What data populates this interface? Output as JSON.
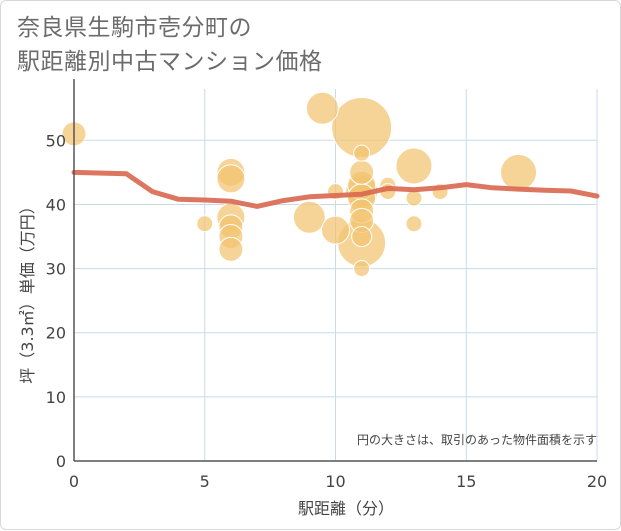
{
  "chart_data": {
    "type": "scatter",
    "title_line1": "奈良県生駒市壱分町の",
    "title_line2": "駅距離別中古マンション価格",
    "xlabel": "駅距離（分）",
    "ylabel": "坪（3.3㎡）単価（万円）",
    "note": "円の大きさは、取引のあった物件面積を示す",
    "xlim": [
      0,
      20
    ],
    "ylim": [
      0,
      58
    ],
    "xticks": [
      "0",
      "5",
      "10",
      "15",
      "20"
    ],
    "yticks": [
      "0",
      "10",
      "20",
      "30",
      "40",
      "50"
    ],
    "points": [
      {
        "x": 0,
        "y": 51,
        "size": 2
      },
      {
        "x": 5,
        "y": 37,
        "size": 1
      },
      {
        "x": 6,
        "y": 45,
        "size": 2.5
      },
      {
        "x": 6,
        "y": 44,
        "size": 2.5
      },
      {
        "x": 6,
        "y": 38,
        "size": 2.5
      },
      {
        "x": 6,
        "y": 36.5,
        "size": 2
      },
      {
        "x": 6,
        "y": 35,
        "size": 2
      },
      {
        "x": 6,
        "y": 33,
        "size": 2
      },
      {
        "x": 9,
        "y": 38,
        "size": 3
      },
      {
        "x": 9.5,
        "y": 55,
        "size": 3
      },
      {
        "x": 10,
        "y": 42,
        "size": 1
      },
      {
        "x": 10,
        "y": 36,
        "size": 2.5
      },
      {
        "x": 11,
        "y": 52,
        "size": 6.5
      },
      {
        "x": 11,
        "y": 48,
        "size": 1
      },
      {
        "x": 11,
        "y": 45,
        "size": 2
      },
      {
        "x": 11,
        "y": 43,
        "size": 2.5
      },
      {
        "x": 11,
        "y": 42,
        "size": 3
      },
      {
        "x": 11,
        "y": 41,
        "size": 2.5
      },
      {
        "x": 11,
        "y": 39,
        "size": 2
      },
      {
        "x": 11,
        "y": 37.5,
        "size": 2
      },
      {
        "x": 11,
        "y": 34,
        "size": 5
      },
      {
        "x": 11,
        "y": 35,
        "size": 1.5
      },
      {
        "x": 11,
        "y": 30,
        "size": 1
      },
      {
        "x": 12,
        "y": 43,
        "size": 1
      },
      {
        "x": 12,
        "y": 42,
        "size": 1
      },
      {
        "x": 13,
        "y": 46,
        "size": 3.5
      },
      {
        "x": 13,
        "y": 41,
        "size": 1
      },
      {
        "x": 13,
        "y": 37,
        "size": 1
      },
      {
        "x": 14,
        "y": 42,
        "size": 1
      },
      {
        "x": 17,
        "y": 45,
        "size": 3.5
      }
    ],
    "trend": {
      "x": [
        0,
        2,
        3,
        4,
        5,
        6,
        7,
        8,
        9,
        10,
        11,
        12,
        13,
        14,
        15,
        16,
        17,
        18,
        19,
        20
      ],
      "y": [
        45,
        44.8,
        42,
        40.8,
        40.7,
        40.5,
        39.7,
        40.6,
        41.2,
        41.4,
        41.6,
        42.5,
        42.3,
        42.6,
        43.1,
        42.6,
        42.4,
        42.2,
        42.1,
        41.3
      ]
    },
    "colors": {
      "bubble": "#f3c36f",
      "bubble_stroke": "#ffffff",
      "trend": "#d9674f",
      "grid": "#c9dbe8",
      "axis": "#555555"
    }
  }
}
